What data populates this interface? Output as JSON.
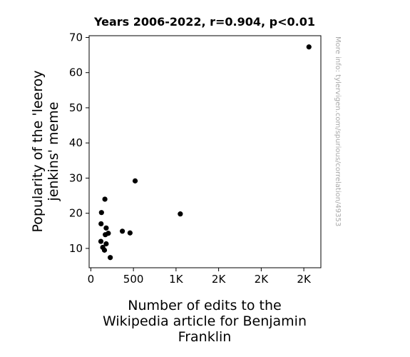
{
  "chart_data": {
    "type": "scatter",
    "title": "Years 2006-2022, r=0.904, p<0.01",
    "xlabel": [
      "Number of edits to the",
      "Wikipedia article for Benjamin",
      "Franklin"
    ],
    "ylabel": [
      "Popularity of the 'leeroy",
      "jenkins' meme"
    ],
    "xlim": [
      -20,
      2700
    ],
    "ylim": [
      4.5,
      70.5
    ],
    "x_ticks": [
      0,
      500,
      1000,
      1500,
      2000,
      2500
    ],
    "x_tick_labels": [
      "0",
      "500",
      "1K",
      "2K",
      "2K",
      "2K"
    ],
    "y_ticks": [
      10,
      20,
      30,
      40,
      50,
      60,
      70
    ],
    "y_tick_labels": [
      "10",
      "20",
      "30",
      "40",
      "50",
      "60",
      "70"
    ],
    "grid": false,
    "point_color": "#000000",
    "points": [
      {
        "x": 2560,
        "y": 67.3
      },
      {
        "x": 520,
        "y": 29.2
      },
      {
        "x": 165,
        "y": 24.0
      },
      {
        "x": 125,
        "y": 20.2
      },
      {
        "x": 1050,
        "y": 19.8
      },
      {
        "x": 120,
        "y": 17.0
      },
      {
        "x": 180,
        "y": 15.8
      },
      {
        "x": 370,
        "y": 14.9
      },
      {
        "x": 460,
        "y": 14.4
      },
      {
        "x": 205,
        "y": 14.3
      },
      {
        "x": 170,
        "y": 13.9
      },
      {
        "x": 118,
        "y": 12.0
      },
      {
        "x": 180,
        "y": 11.3
      },
      {
        "x": 140,
        "y": 10.3
      },
      {
        "x": 160,
        "y": 9.5
      },
      {
        "x": 228,
        "y": 7.4
      }
    ]
  },
  "side_note": "More info: tylervigen.com/spurious/correlation/49353"
}
